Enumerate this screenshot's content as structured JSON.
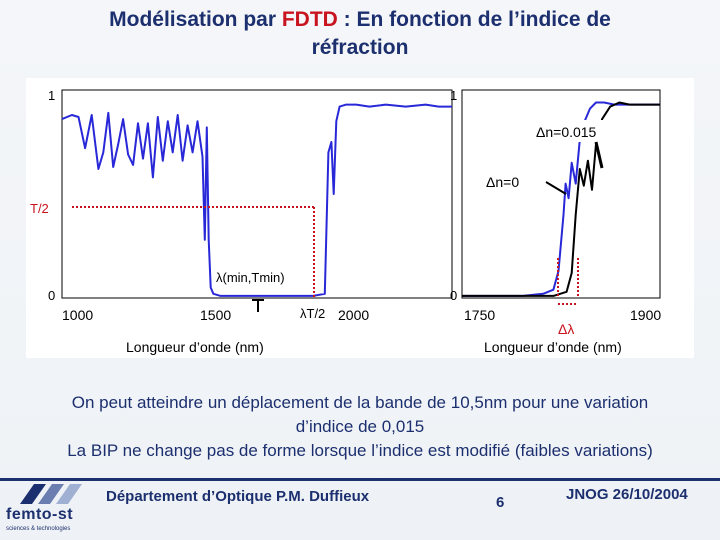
{
  "title": {
    "prefix": "Modélisation par ",
    "highlight": "FDTD",
    "suffix": " : En fonction de l’indice de",
    "line2": "réfraction"
  },
  "chart_data": [
    {
      "type": "line",
      "title": "",
      "xlabel": "Longueur d’onde (nm)",
      "ylabel": "",
      "xlim": [
        960,
        2140
      ],
      "ylim": [
        0,
        1
      ],
      "x_ticks": [
        "1000",
        "1500",
        "2000"
      ],
      "y_ticks": [
        "0",
        "1"
      ],
      "series": [
        {
          "color": "#2828d8",
          "x": [
            960,
            990,
            1010,
            1030,
            1050,
            1070,
            1085,
            1100,
            1115,
            1130,
            1145,
            1160,
            1175,
            1190,
            1205,
            1220,
            1235,
            1250,
            1265,
            1280,
            1295,
            1310,
            1325,
            1340,
            1355,
            1370,
            1385,
            1392,
            1398,
            1404,
            1410,
            1418,
            1440,
            1500,
            1560,
            1620,
            1680,
            1720,
            1755,
            1766,
            1775,
            1782,
            1790,
            1800,
            1820,
            1850,
            1890,
            1940,
            2000,
            2060,
            2100,
            2140
          ],
          "y": [
            0.86,
            0.88,
            0.87,
            0.72,
            0.88,
            0.62,
            0.7,
            0.89,
            0.63,
            0.74,
            0.86,
            0.69,
            0.64,
            0.84,
            0.67,
            0.84,
            0.58,
            0.87,
            0.66,
            0.85,
            0.7,
            0.88,
            0.66,
            0.83,
            0.7,
            0.85,
            0.68,
            0.28,
            0.82,
            0.28,
            0.05,
            0.02,
            0.01,
            0.01,
            0.01,
            0.01,
            0.01,
            0.01,
            0.02,
            0.7,
            0.75,
            0.5,
            0.85,
            0.92,
            0.93,
            0.93,
            0.92,
            0.93,
            0.92,
            0.93,
            0.92,
            0.92
          ]
        }
      ],
      "annotations": [
        {
          "text": "T/2"
        },
        {
          "text": "λ(min,Tmin)"
        },
        {
          "text": "λT/2"
        }
      ]
    },
    {
      "type": "line",
      "title": "",
      "xlabel": "Longueur d’onde (nm)",
      "ylabel": "",
      "xlim": [
        1740,
        1935
      ],
      "ylim": [
        0,
        1
      ],
      "x_ticks": [
        "1750",
        "1900"
      ],
      "y_ticks": [
        "0",
        "1"
      ],
      "series": [
        {
          "name": "Δn=0",
          "color": "#2828d8",
          "x": [
            1740,
            1770,
            1800,
            1820,
            1830,
            1835,
            1840,
            1842,
            1845,
            1848,
            1852,
            1856,
            1860,
            1866,
            1872,
            1880,
            1890,
            1905,
            1920,
            1935
          ],
          "y": [
            0.01,
            0.01,
            0.01,
            0.02,
            0.04,
            0.13,
            0.4,
            0.55,
            0.48,
            0.65,
            0.55,
            0.76,
            0.84,
            0.91,
            0.94,
            0.94,
            0.93,
            0.93,
            0.93,
            0.93
          ]
        },
        {
          "name": "Δn=0.015",
          "color": "#000000",
          "x": [
            1740,
            1790,
            1830,
            1843,
            1848,
            1852,
            1856,
            1860,
            1864,
            1868,
            1872,
            1878,
            1886,
            1895,
            1905,
            1920,
            1935
          ],
          "y": [
            0.01,
            0.01,
            0.01,
            0.03,
            0.12,
            0.4,
            0.62,
            0.54,
            0.66,
            0.52,
            0.74,
            0.86,
            0.92,
            0.94,
            0.93,
            0.93,
            0.93
          ]
        }
      ],
      "annotations": [
        {
          "text": "Δn=0.015"
        },
        {
          "text": "Δn=0"
        },
        {
          "text": "Δλ"
        }
      ]
    }
  ],
  "body": {
    "line1": "On peut atteindre un déplacement de la bande de 10,5nm pour une variation",
    "line2": "d’indice de 0,015",
    "line3": "La BIP ne change pas de forme lorsque l’indice est modifié (faibles variations)"
  },
  "footer": {
    "logo_text": "femto-st",
    "logo_sub": "sciences & technologies",
    "department": "Département d’Optique P.M. Duffieux",
    "page": "6",
    "conference": "JNOG 26/10/2004"
  },
  "colors": {
    "title": "#1c2f6e",
    "accent": "#c8141e",
    "curve_blue": "#2828d8"
  }
}
